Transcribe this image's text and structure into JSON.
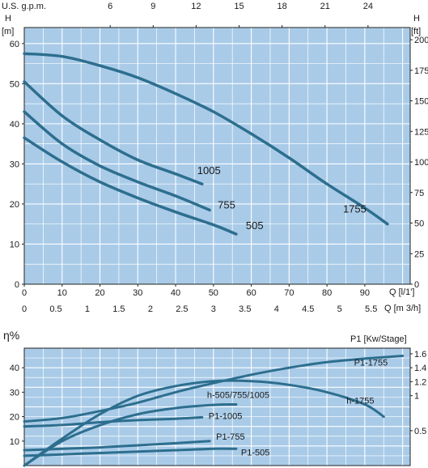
{
  "chart_data": [
    {
      "type": "line",
      "title": "",
      "ylabel": "H",
      "yunit": "[m]",
      "ylabel_right": "H",
      "yunit_right": "[ft]",
      "xlabel_lps": "Q [l/1']",
      "xlabel_m3h": "Q [m 3/h]",
      "xlabel_gpm": "U.S. g.p.m.",
      "xlim_lpm": [
        0,
        102
      ],
      "ylim": [
        0,
        64
      ],
      "grid": true,
      "x_ticks_lpm": [
        "0",
        "10",
        "20",
        "30",
        "40",
        "50",
        "60",
        "70",
        "80",
        "90"
      ],
      "y_ticks_m": [
        "0",
        "10",
        "20",
        "30",
        "40",
        "50",
        "60"
      ],
      "y_ticks_ft": [
        "0",
        "25",
        "50",
        "75",
        "100",
        "125",
        "150",
        "175",
        "200"
      ],
      "x_ticks_m3h": [
        "0",
        "0.5",
        "1",
        "1.5",
        "2",
        "2.5",
        "3",
        "3.5",
        "4",
        "4.5",
        "5",
        "5.5"
      ],
      "x_ticks_gpm": [
        "6",
        "9",
        "12",
        "15",
        "18",
        "21",
        "24"
      ],
      "line_color": "#2d6e8e",
      "plot_bg": "#a9cbe8",
      "series": [
        {
          "name": "1755",
          "x": [
            0,
            10,
            20,
            30,
            40,
            50,
            60,
            70,
            80,
            90,
            96
          ],
          "y": [
            57.5,
            56.8,
            54.5,
            51.5,
            47.5,
            43.0,
            37.5,
            31.5,
            25.0,
            19.0,
            15.0
          ]
        },
        {
          "name": "1005",
          "x": [
            0,
            10,
            20,
            30,
            40,
            47
          ],
          "y": [
            50.5,
            42.0,
            36.0,
            31.0,
            27.5,
            25.0
          ]
        },
        {
          "name": "755",
          "x": [
            0,
            10,
            20,
            30,
            40,
            49
          ],
          "y": [
            43.0,
            35.0,
            29.5,
            25.5,
            22.0,
            18.5
          ]
        },
        {
          "name": "505",
          "x": [
            0,
            10,
            20,
            30,
            40,
            50,
            56
          ],
          "y": [
            36.5,
            30.5,
            25.5,
            21.5,
            18.0,
            14.8,
            12.5
          ]
        }
      ]
    },
    {
      "type": "line",
      "title": "",
      "ylabel": "η%",
      "ylabel_right": "P1 [Kw/Stage]",
      "xlim_lpm": [
        0,
        102
      ],
      "ylim": [
        0,
        48
      ],
      "ylim_right": [
        0,
        1.68
      ],
      "grid": true,
      "y_ticks": [
        "10",
        "20",
        "30",
        "40"
      ],
      "y_ticks_right": [
        "0.5",
        "1",
        "1.2",
        "1.4",
        "1.6"
      ],
      "line_color": "#2d6e8e",
      "plot_bg": "#a9cbe8",
      "series": [
        {
          "name": "P1-1755",
          "axis": "right",
          "x": [
            0,
            10,
            20,
            30,
            40,
            50,
            60,
            70,
            80,
            90,
            100
          ],
          "y": [
            0.63,
            0.68,
            0.78,
            0.9,
            1.05,
            1.18,
            1.3,
            1.4,
            1.48,
            1.53,
            1.57
          ]
        },
        {
          "name": "h-1755",
          "axis": "left",
          "x": [
            0,
            10,
            20,
            30,
            40,
            50,
            60,
            70,
            80,
            90,
            95
          ],
          "y": [
            0,
            11,
            21,
            28.5,
            32.5,
            34.5,
            34.5,
            33,
            30,
            25,
            20
          ]
        },
        {
          "name": "h-505/755/1005",
          "axis": "left",
          "x": [
            0,
            10,
            20,
            30,
            40,
            50,
            56
          ],
          "y": [
            0,
            10,
            16.5,
            21,
            23.5,
            24.8,
            25
          ]
        },
        {
          "name": "P1-1005",
          "axis": "right",
          "x": [
            0,
            10,
            20,
            30,
            40,
            47
          ],
          "y": [
            0.56,
            0.58,
            0.62,
            0.65,
            0.67,
            0.69
          ]
        },
        {
          "name": "P1-755",
          "axis": "right",
          "x": [
            0,
            10,
            20,
            30,
            40,
            49
          ],
          "y": [
            0.22,
            0.24,
            0.26,
            0.29,
            0.32,
            0.35
          ]
        },
        {
          "name": "P1-505",
          "axis": "right",
          "x": [
            0,
            10,
            20,
            30,
            40,
            50,
            56
          ],
          "y": [
            0.14,
            0.16,
            0.18,
            0.2,
            0.22,
            0.24,
            0.24
          ]
        }
      ]
    }
  ]
}
